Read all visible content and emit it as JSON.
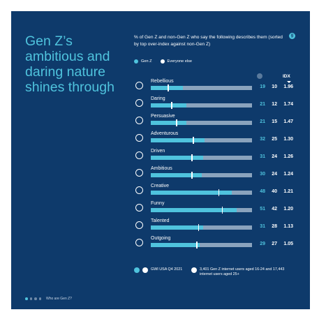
{
  "headline": "Gen Z’s ambitious and daring nature shines through",
  "subtitle": "% of Gen Z and non-Gen Z who say the following describes them (sorted by top over-index against non-Gen Z)",
  "legend": {
    "genz": "Gen Z",
    "else": "Everyone else"
  },
  "columns": {
    "idx": "IDX"
  },
  "colors": {
    "background": "#0e3a6b",
    "accent": "#4fc3dd",
    "track": "#8aa3bd",
    "text": "#ffffff"
  },
  "chart_data": {
    "type": "bar",
    "categories": [
      "Rebellious",
      "Daring",
      "Persuasive",
      "Adventurous",
      "Driven",
      "Ambitious",
      "Creative",
      "Funny",
      "Talented",
      "Outgoing"
    ],
    "series": [
      {
        "name": "Gen Z",
        "values": [
          19,
          21,
          21,
          32,
          31,
          30,
          48,
          51,
          31,
          29
        ]
      },
      {
        "name": "Everyone else",
        "values": [
          10,
          12,
          15,
          25,
          24,
          24,
          40,
          42,
          28,
          27
        ]
      }
    ],
    "idx": [
      "1.96",
      "1.74",
      "1.47",
      "1.30",
      "1.26",
      "1.24",
      "1.21",
      "1.20",
      "1.13",
      "1.05"
    ],
    "icons": [
      "lightning-icon",
      "sun-icon",
      "smiley-icon",
      "compass-icon",
      "road-icon",
      "star-icon",
      "palette-icon",
      "laughing-face-icon",
      "trophy-icon",
      "bright-sun-icon"
    ],
    "xlim": [
      0,
      60
    ]
  },
  "footer": {
    "source": "GWI USA Q4 2021",
    "base": "3,401 Gen Z internet users aged 16-24 and 17,443 internet users aged 25+"
  },
  "pager": {
    "label": "Who are Gen Z?"
  }
}
